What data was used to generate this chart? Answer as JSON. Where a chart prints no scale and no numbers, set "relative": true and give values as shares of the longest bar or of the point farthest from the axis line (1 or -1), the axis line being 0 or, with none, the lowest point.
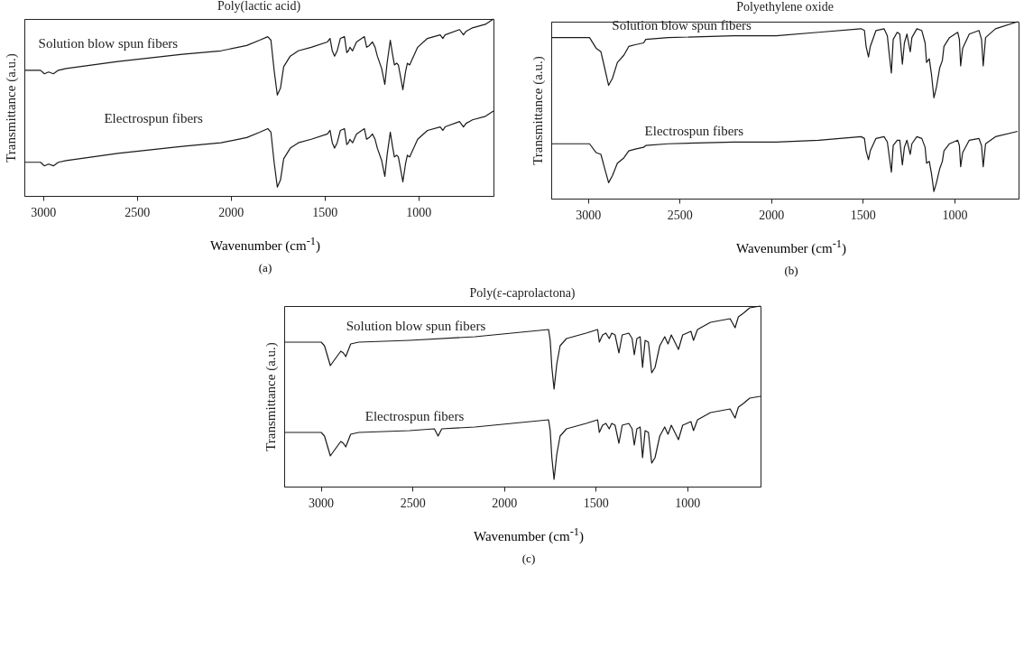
{
  "chart_data": [
    {
      "type": "line",
      "title": "Poly(lactic acid)",
      "xlabel": "Wavenumber (cm$^{-1}$)",
      "ylabel": "Transmittance (a.u.)",
      "relative": true,
      "tick_labels": "x",
      "xlim": [
        3100,
        600
      ],
      "xticks": [
        3000,
        2500,
        2000,
        1500,
        1000
      ],
      "annotations": [
        "(a)"
      ],
      "x": [
        3100,
        3014,
        2993,
        2971,
        2945,
        2919,
        2877,
        2602,
        2258,
        2052,
        1915,
        1846,
        1803,
        1786,
        1769,
        1752,
        1735,
        1718,
        1683,
        1640,
        1571,
        1485,
        1471,
        1459,
        1447,
        1433,
        1416,
        1394,
        1382,
        1373,
        1365,
        1351,
        1330,
        1288,
        1276,
        1262,
        1245,
        1231,
        1219,
        1196,
        1179,
        1167,
        1150,
        1138,
        1128,
        1116,
        1107,
        1093,
        1083,
        1069,
        1059,
        1047,
        1004,
        952,
        884,
        870,
        858,
        781,
        760,
        746,
        729,
        712,
        643,
        600
      ],
      "series": [
        {
          "name": "Solution blow spun fibers",
          "color": "#1a1a1a",
          "values": [
            0.71,
            0.71,
            0.69,
            0.7,
            0.69,
            0.71,
            0.72,
            0.76,
            0.8,
            0.82,
            0.85,
            0.88,
            0.9,
            0.88,
            0.71,
            0.57,
            0.61,
            0.73,
            0.79,
            0.82,
            0.84,
            0.87,
            0.89,
            0.82,
            0.79,
            0.82,
            0.89,
            0.9,
            0.81,
            0.82,
            0.84,
            0.82,
            0.87,
            0.9,
            0.84,
            0.85,
            0.87,
            0.84,
            0.79,
            0.72,
            0.63,
            0.75,
            0.88,
            0.8,
            0.74,
            0.75,
            0.74,
            0.66,
            0.6,
            0.7,
            0.75,
            0.74,
            0.84,
            0.89,
            0.91,
            0.89,
            0.91,
            0.94,
            0.91,
            0.93,
            0.94,
            0.95,
            0.97,
            1.0
          ]
        },
        {
          "name": "Electrospun fibers",
          "color": "#1a1a1a",
          "values": [
            0.19,
            0.19,
            0.17,
            0.18,
            0.17,
            0.19,
            0.2,
            0.24,
            0.28,
            0.3,
            0.33,
            0.36,
            0.38,
            0.36,
            0.19,
            0.05,
            0.09,
            0.21,
            0.27,
            0.3,
            0.32,
            0.35,
            0.37,
            0.3,
            0.27,
            0.3,
            0.37,
            0.38,
            0.29,
            0.3,
            0.32,
            0.3,
            0.35,
            0.38,
            0.32,
            0.33,
            0.35,
            0.32,
            0.27,
            0.2,
            0.11,
            0.23,
            0.36,
            0.28,
            0.22,
            0.23,
            0.22,
            0.14,
            0.08,
            0.18,
            0.23,
            0.22,
            0.32,
            0.37,
            0.39,
            0.37,
            0.39,
            0.42,
            0.39,
            0.41,
            0.42,
            0.43,
            0.45,
            0.48
          ]
        }
      ]
    },
    {
      "type": "line",
      "title": "Polyethylene oxide",
      "xlabel": "Wavenumber (cm$^{-1}$)",
      "ylabel": "Transmittance (a.u.)",
      "relative": true,
      "tick_labels": "x",
      "xlim": [
        3200,
        650
      ],
      "xticks": [
        3000,
        2500,
        2000,
        1500,
        1000
      ],
      "annotations": [
        "(b)"
      ],
      "x": [
        3200,
        2991,
        2955,
        2929,
        2911,
        2887,
        2866,
        2839,
        2804,
        2777,
        2741,
        2696,
        2684,
        2562,
        2205,
        1973,
        1741,
        1509,
        1491,
        1482,
        1469,
        1459,
        1428,
        1384,
        1366,
        1357,
        1344,
        1334,
        1312,
        1298,
        1284,
        1273,
        1259,
        1241,
        1232,
        1205,
        1178,
        1160,
        1152,
        1137,
        1125,
        1112,
        1098,
        1080,
        1066,
        1057,
        1027,
        982,
        973,
        966,
        955,
        919,
        866,
        852,
        843,
        830,
        776,
        655
      ],
      "series": [
        {
          "name": "Solution blow spun fibers",
          "color": "#1a1a1a",
          "values": [
            0.91,
            0.91,
            0.85,
            0.83,
            0.75,
            0.64,
            0.68,
            0.77,
            0.81,
            0.86,
            0.87,
            0.88,
            0.9,
            0.91,
            0.92,
            0.92,
            0.94,
            0.96,
            0.95,
            0.86,
            0.8,
            0.86,
            0.95,
            0.96,
            0.92,
            0.83,
            0.71,
            0.9,
            0.94,
            0.93,
            0.76,
            0.88,
            0.93,
            0.83,
            0.91,
            0.96,
            0.95,
            0.88,
            0.77,
            0.79,
            0.7,
            0.57,
            0.63,
            0.74,
            0.78,
            0.86,
            0.91,
            0.94,
            0.9,
            0.75,
            0.85,
            0.93,
            0.95,
            0.9,
            0.75,
            0.91,
            0.96,
            1.0
          ]
        },
        {
          "name": "Electrospun fibers",
          "color": "#1a1a1a",
          "values": [
            0.31,
            0.31,
            0.26,
            0.25,
            0.18,
            0.09,
            0.13,
            0.2,
            0.23,
            0.27,
            0.28,
            0.29,
            0.3,
            0.31,
            0.32,
            0.32,
            0.33,
            0.35,
            0.34,
            0.27,
            0.22,
            0.27,
            0.34,
            0.35,
            0.32,
            0.25,
            0.15,
            0.3,
            0.33,
            0.33,
            0.19,
            0.29,
            0.33,
            0.25,
            0.31,
            0.35,
            0.34,
            0.29,
            0.2,
            0.21,
            0.14,
            0.04,
            0.09,
            0.17,
            0.21,
            0.27,
            0.31,
            0.33,
            0.3,
            0.18,
            0.26,
            0.33,
            0.34,
            0.3,
            0.18,
            0.31,
            0.35,
            0.38
          ]
        }
      ]
    },
    {
      "type": "line",
      "title": "Poly(ε-caprolactona)",
      "xlabel": "Wavenumber (cm$^{-1}$)",
      "ylabel": "Transmittance (a.u.)",
      "relative": true,
      "tick_labels": "x",
      "xlim": [
        3200,
        600
      ],
      "xticks": [
        3000,
        2500,
        2000,
        1500,
        1000
      ],
      "annotations": [
        "(c)"
      ],
      "series": [
        {
          "name": "Solution blow spun fibers",
          "color": "#1a1a1a",
          "x": [
            3200,
            2998,
            2980,
            2948,
            2927,
            2891,
            2877,
            2864,
            2837,
            2793,
            2516,
            2159,
            1757,
            1748,
            1739,
            1727,
            1712,
            1694,
            1659,
            1552,
            1489,
            1480,
            1462,
            1444,
            1426,
            1412,
            1394,
            1373,
            1355,
            1319,
            1301,
            1289,
            1275,
            1257,
            1244,
            1230,
            1212,
            1194,
            1176,
            1150,
            1123,
            1105,
            1087,
            1048,
            1025,
            980,
            966,
            944,
            873,
            766,
            739,
            721,
            694,
            659,
            600
          ],
          "values": [
            0.8,
            0.8,
            0.78,
            0.67,
            0.7,
            0.75,
            0.74,
            0.72,
            0.79,
            0.8,
            0.81,
            0.83,
            0.87,
            0.81,
            0.66,
            0.54,
            0.68,
            0.78,
            0.82,
            0.85,
            0.87,
            0.8,
            0.84,
            0.85,
            0.82,
            0.85,
            0.84,
            0.74,
            0.84,
            0.85,
            0.82,
            0.73,
            0.82,
            0.83,
            0.66,
            0.81,
            0.8,
            0.63,
            0.66,
            0.78,
            0.83,
            0.79,
            0.84,
            0.76,
            0.84,
            0.86,
            0.81,
            0.87,
            0.91,
            0.93,
            0.88,
            0.94,
            0.96,
            0.99,
            1.0
          ]
        },
        {
          "name": "Electrospun fibers",
          "color": "#1a1a1a",
          "x": [
            3200,
            2998,
            2980,
            2948,
            2927,
            2891,
            2877,
            2864,
            2837,
            2793,
            2516,
            2380,
            2360,
            2340,
            2159,
            1757,
            1748,
            1739,
            1727,
            1712,
            1694,
            1659,
            1552,
            1489,
            1480,
            1462,
            1444,
            1426,
            1412,
            1394,
            1373,
            1355,
            1319,
            1301,
            1289,
            1275,
            1257,
            1244,
            1230,
            1212,
            1194,
            1176,
            1150,
            1123,
            1105,
            1087,
            1048,
            1025,
            980,
            966,
            944,
            873,
            766,
            739,
            721,
            694,
            659,
            600
          ],
          "values": [
            0.3,
            0.3,
            0.28,
            0.17,
            0.2,
            0.25,
            0.24,
            0.22,
            0.29,
            0.3,
            0.31,
            0.32,
            0.28,
            0.32,
            0.33,
            0.37,
            0.31,
            0.16,
            0.04,
            0.18,
            0.28,
            0.32,
            0.35,
            0.37,
            0.3,
            0.34,
            0.35,
            0.32,
            0.35,
            0.34,
            0.24,
            0.34,
            0.35,
            0.32,
            0.23,
            0.32,
            0.33,
            0.16,
            0.31,
            0.3,
            0.13,
            0.16,
            0.28,
            0.33,
            0.29,
            0.34,
            0.26,
            0.34,
            0.36,
            0.31,
            0.37,
            0.41,
            0.43,
            0.38,
            0.44,
            0.46,
            0.49,
            0.5
          ]
        }
      ]
    }
  ]
}
